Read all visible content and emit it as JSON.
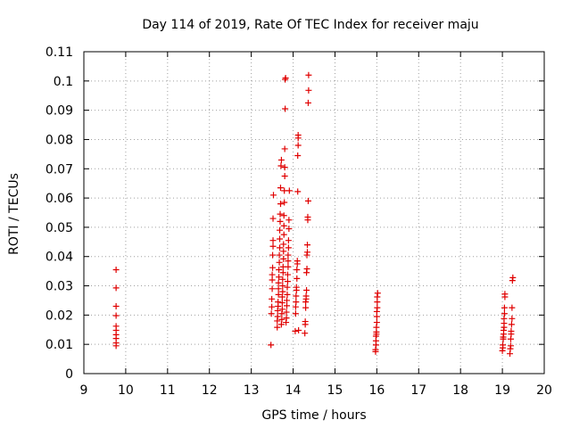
{
  "chart_data": {
    "type": "scatter",
    "title": "Day 114 of 2019, Rate Of TEC Index for receiver maju",
    "xlabel": "GPS time / hours",
    "ylabel": "ROTI / TECUs",
    "xlim": [
      9,
      20
    ],
    "ylim": [
      0,
      0.11
    ],
    "xticks": [
      "9",
      "10",
      "11",
      "12",
      "13",
      "14",
      "15",
      "16",
      "17",
      "18",
      "19",
      "20"
    ],
    "yticks": [
      "0",
      "0.01",
      "0.02",
      "0.03",
      "0.04",
      "0.05",
      "0.06",
      "0.07",
      "0.08",
      "0.09",
      "0.1",
      "0.11"
    ],
    "grid": true,
    "marker": "+",
    "color": "#e00000",
    "series": [
      {
        "name": "receiver maju",
        "points": [
          [
            9.77,
            0.0355
          ],
          [
            9.77,
            0.0293
          ],
          [
            9.77,
            0.023
          ],
          [
            9.77,
            0.0198
          ],
          [
            9.77,
            0.0162
          ],
          [
            9.77,
            0.0148
          ],
          [
            9.77,
            0.0133
          ],
          [
            9.77,
            0.012
          ],
          [
            9.77,
            0.0105
          ],
          [
            9.77,
            0.0095
          ],
          [
            13.47,
            0.0098
          ],
          [
            13.48,
            0.0205
          ],
          [
            13.49,
            0.0228
          ],
          [
            13.49,
            0.0255
          ],
          [
            13.5,
            0.029
          ],
          [
            13.5,
            0.032
          ],
          [
            13.5,
            0.0338
          ],
          [
            13.51,
            0.0362
          ],
          [
            13.51,
            0.0405
          ],
          [
            13.52,
            0.0435
          ],
          [
            13.52,
            0.0455
          ],
          [
            13.52,
            0.053
          ],
          [
            13.53,
            0.061
          ],
          [
            13.62,
            0.0158
          ],
          [
            13.62,
            0.018
          ],
          [
            13.63,
            0.0195
          ],
          [
            13.63,
            0.0215
          ],
          [
            13.64,
            0.023
          ],
          [
            13.64,
            0.0245
          ],
          [
            13.65,
            0.027
          ],
          [
            13.65,
            0.029
          ],
          [
            13.65,
            0.031
          ],
          [
            13.66,
            0.033
          ],
          [
            13.66,
            0.0355
          ],
          [
            13.67,
            0.038
          ],
          [
            13.67,
            0.0405
          ],
          [
            13.68,
            0.043
          ],
          [
            13.68,
            0.046
          ],
          [
            13.68,
            0.049
          ],
          [
            13.69,
            0.052
          ],
          [
            13.69,
            0.0545
          ],
          [
            13.7,
            0.058
          ],
          [
            13.7,
            0.0635
          ],
          [
            13.71,
            0.071
          ],
          [
            13.72,
            0.073
          ],
          [
            13.72,
            0.0168
          ],
          [
            13.73,
            0.0185
          ],
          [
            13.73,
            0.0205
          ],
          [
            13.74,
            0.022
          ],
          [
            13.74,
            0.0242
          ],
          [
            13.74,
            0.0262
          ],
          [
            13.75,
            0.028
          ],
          [
            13.75,
            0.03
          ],
          [
            13.75,
            0.0322
          ],
          [
            13.76,
            0.0345
          ],
          [
            13.76,
            0.0365
          ],
          [
            13.77,
            0.0392
          ],
          [
            13.77,
            0.0418
          ],
          [
            13.77,
            0.0442
          ],
          [
            13.78,
            0.0475
          ],
          [
            13.78,
            0.0505
          ],
          [
            13.78,
            0.054
          ],
          [
            13.79,
            0.0585
          ],
          [
            13.79,
            0.0625
          ],
          [
            13.8,
            0.0675
          ],
          [
            13.8,
            0.0705
          ],
          [
            13.8,
            0.0768
          ],
          [
            13.81,
            0.0905
          ],
          [
            13.81,
            0.1005
          ],
          [
            13.82,
            0.101
          ],
          [
            13.83,
            0.0175
          ],
          [
            13.84,
            0.019
          ],
          [
            13.84,
            0.021
          ],
          [
            13.85,
            0.0232
          ],
          [
            13.85,
            0.025
          ],
          [
            13.86,
            0.027
          ],
          [
            13.86,
            0.0295
          ],
          [
            13.87,
            0.0315
          ],
          [
            13.87,
            0.0338
          ],
          [
            13.88,
            0.0365
          ],
          [
            13.88,
            0.0385
          ],
          [
            13.88,
            0.0405
          ],
          [
            13.89,
            0.043
          ],
          [
            13.89,
            0.0455
          ],
          [
            13.9,
            0.0495
          ],
          [
            13.9,
            0.0525
          ],
          [
            13.91,
            0.0625
          ],
          [
            14.05,
            0.0145
          ],
          [
            14.06,
            0.0205
          ],
          [
            14.06,
            0.0228
          ],
          [
            14.07,
            0.0245
          ],
          [
            14.07,
            0.0265
          ],
          [
            14.08,
            0.0285
          ],
          [
            14.08,
            0.0295
          ],
          [
            14.09,
            0.0325
          ],
          [
            14.09,
            0.0355
          ],
          [
            14.1,
            0.0375
          ],
          [
            14.1,
            0.0385
          ],
          [
            14.11,
            0.0622
          ],
          [
            14.11,
            0.0745
          ],
          [
            14.12,
            0.078
          ],
          [
            14.12,
            0.0805
          ],
          [
            14.12,
            0.0815
          ],
          [
            14.13,
            0.0148
          ],
          [
            14.28,
            0.0138
          ],
          [
            14.29,
            0.0168
          ],
          [
            14.29,
            0.0178
          ],
          [
            14.3,
            0.0225
          ],
          [
            14.3,
            0.0245
          ],
          [
            14.31,
            0.0255
          ],
          [
            14.31,
            0.0265
          ],
          [
            14.32,
            0.0285
          ],
          [
            14.32,
            0.0345
          ],
          [
            14.33,
            0.0358
          ],
          [
            14.33,
            0.0405
          ],
          [
            14.34,
            0.0415
          ],
          [
            14.34,
            0.044
          ],
          [
            14.35,
            0.0525
          ],
          [
            14.35,
            0.0535
          ],
          [
            14.36,
            0.059
          ],
          [
            14.36,
            0.0925
          ],
          [
            14.37,
            0.0968
          ],
          [
            14.37,
            0.102
          ],
          [
            15.97,
            0.0075
          ],
          [
            15.97,
            0.0082
          ],
          [
            15.98,
            0.0098
          ],
          [
            15.98,
            0.0112
          ],
          [
            15.98,
            0.0128
          ],
          [
            15.99,
            0.0135
          ],
          [
            15.99,
            0.0142
          ],
          [
            15.99,
            0.0158
          ],
          [
            16.0,
            0.0175
          ],
          [
            16.0,
            0.0195
          ],
          [
            16.0,
            0.0212
          ],
          [
            16.01,
            0.0225
          ],
          [
            16.01,
            0.0245
          ],
          [
            16.01,
            0.0262
          ],
          [
            16.02,
            0.0275
          ],
          [
            19.0,
            0.0078
          ],
          [
            19.01,
            0.0088
          ],
          [
            19.01,
            0.0098
          ],
          [
            19.02,
            0.0118
          ],
          [
            19.02,
            0.0125
          ],
          [
            19.03,
            0.0135
          ],
          [
            19.03,
            0.0148
          ],
          [
            19.04,
            0.0158
          ],
          [
            19.04,
            0.0172
          ],
          [
            19.04,
            0.0188
          ],
          [
            19.05,
            0.0205
          ],
          [
            19.05,
            0.0225
          ],
          [
            19.06,
            0.0262
          ],
          [
            19.06,
            0.0272
          ],
          [
            19.18,
            0.0068
          ],
          [
            19.19,
            0.0085
          ],
          [
            19.2,
            0.0095
          ],
          [
            19.2,
            0.0118
          ],
          [
            19.21,
            0.0135
          ],
          [
            19.21,
            0.0145
          ],
          [
            19.22,
            0.0168
          ],
          [
            19.23,
            0.0188
          ],
          [
            19.23,
            0.0225
          ],
          [
            19.24,
            0.0318
          ],
          [
            19.25,
            0.0328
          ]
        ]
      }
    ]
  }
}
